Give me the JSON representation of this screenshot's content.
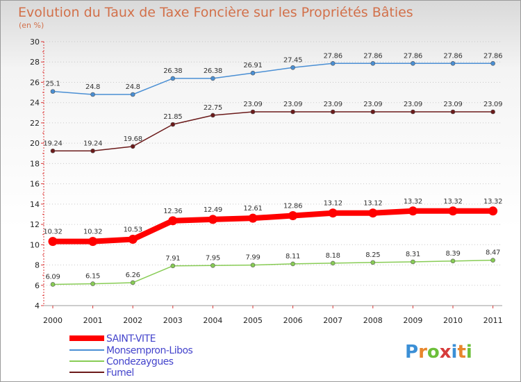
{
  "chart_data": {
    "type": "line",
    "title": "Evolution du Taux de Taxe Foncière sur les Propriétés Bâties",
    "subtitle": "(en %)",
    "xlabel": "",
    "ylabel": "",
    "ylim": [
      4,
      30
    ],
    "yticks": [
      "4",
      "6",
      "8",
      "10",
      "12",
      "14",
      "16",
      "18",
      "20",
      "22",
      "24",
      "26",
      "28",
      "30"
    ],
    "categories": [
      "2000",
      "2001",
      "2002",
      "2003",
      "2004",
      "2005",
      "2006",
      "2007",
      "2008",
      "2009",
      "2010",
      "2011"
    ],
    "grid": "horizontal dotted",
    "legend_position": "bottom-left",
    "series": [
      {
        "name": "SAINT-VITE",
        "color": "#ff0000",
        "values": [
          10.32,
          10.32,
          10.53,
          12.36,
          12.49,
          12.61,
          12.86,
          13.12,
          13.12,
          13.32,
          13.32,
          13.32
        ],
        "labels": [
          "10.32",
          "10.32",
          "10.53",
          "12.36",
          "12.49",
          "12.61",
          "12.86",
          "13.12",
          "13.12",
          "13.32",
          "13.32",
          "13.32"
        ]
      },
      {
        "name": "Monsempron-Libos",
        "color": "#4a8fd4",
        "values": [
          25.1,
          24.8,
          24.8,
          26.38,
          26.38,
          26.91,
          27.45,
          27.86,
          27.86,
          27.86,
          27.86,
          27.86
        ],
        "labels": [
          "25.1",
          "24.8",
          "24.8",
          "26.38",
          "26.38",
          "26.91",
          "27.45",
          "27.86",
          "27.86",
          "27.86",
          "27.86",
          "27.86"
        ]
      },
      {
        "name": "Condezaygues",
        "color": "#88cc55",
        "values": [
          6.09,
          6.15,
          6.26,
          7.91,
          7.95,
          7.99,
          8.11,
          8.18,
          8.25,
          8.31,
          8.39,
          8.47
        ],
        "labels": [
          "6.09",
          "6.15",
          "6.26",
          "7.91",
          "7.95",
          "7.99",
          "8.11",
          "8.18",
          "8.25",
          "8.31",
          "8.39",
          "8.47"
        ]
      },
      {
        "name": "Fumel",
        "color": "#6b1a1a",
        "values": [
          19.24,
          19.24,
          19.68,
          21.85,
          22.75,
          23.09,
          23.09,
          23.09,
          23.09,
          23.09,
          23.09,
          23.09
        ],
        "labels": [
          "19.24",
          "19.24",
          "19.68",
          "21.85",
          "22.75",
          "23.09",
          "23.09",
          "23.09",
          "23.09",
          "23.09",
          "23.09",
          "23.09"
        ]
      }
    ]
  },
  "brand": {
    "letters": [
      "P",
      "r",
      "o",
      "x",
      "i",
      "t",
      "i"
    ],
    "colors": [
      "#3b8fd6",
      "#e8862c",
      "#6cbf3a",
      "#d63b3b",
      "#3b8fd6",
      "#e8862c",
      "#6cbf3a"
    ]
  }
}
